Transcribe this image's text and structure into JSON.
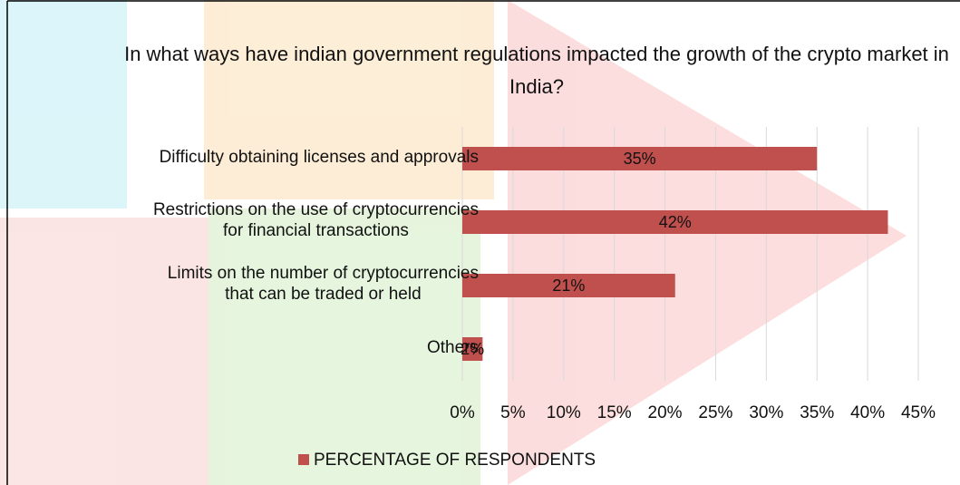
{
  "chart_data": {
    "type": "bar",
    "orientation": "horizontal",
    "title": "In what ways have indian government regulations impacted the growth of the crypto market in India?",
    "categories": [
      "Difficulty obtaining licenses and approvals",
      "Restrictions on the use of cryptocurrencies\nfor financial transactions",
      "Limits on the number of cryptocurrencies\nthat can be traded or held",
      "Others"
    ],
    "series": [
      {
        "name": "PERCENTAGE OF RESPONDENTS",
        "color": "#c0504d",
        "values": [
          35,
          42,
          21,
          2
        ],
        "value_labels": [
          "35%",
          "42%",
          "21%",
          "2%"
        ]
      }
    ],
    "xlim": [
      0,
      45
    ],
    "xticks": [
      {
        "value": 0,
        "label": "0%"
      },
      {
        "value": 5,
        "label": "5%"
      },
      {
        "value": 10,
        "label": "10%"
      },
      {
        "value": 15,
        "label": "15%"
      },
      {
        "value": 20,
        "label": "20%"
      },
      {
        "value": 25,
        "label": "25%"
      },
      {
        "value": 30,
        "label": "30%"
      },
      {
        "value": 35,
        "label": "35%"
      },
      {
        "value": 40,
        "label": "40%"
      },
      {
        "value": 45,
        "label": "45%"
      }
    ],
    "grid": true,
    "legend": "bottom"
  }
}
